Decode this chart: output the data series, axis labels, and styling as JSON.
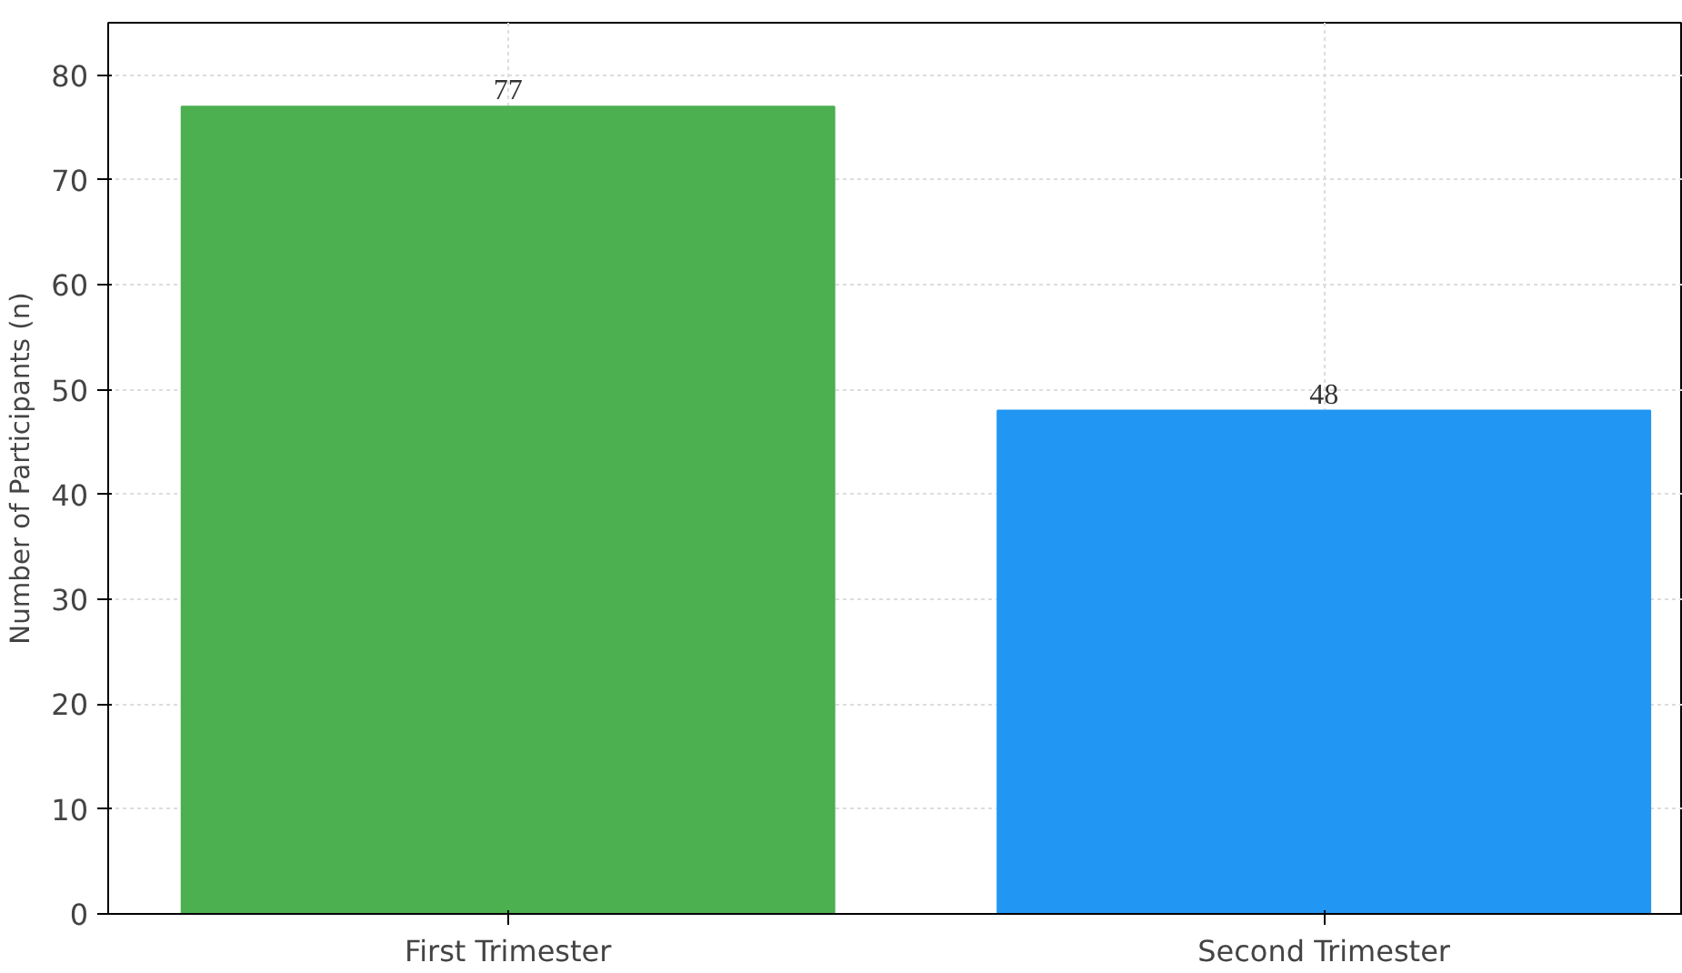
{
  "chart_data": {
    "type": "bar",
    "ylabel": "Number of Participants (n)",
    "categories": [
      "First Trimester",
      "Second Trimester"
    ],
    "values": [
      77,
      48
    ],
    "colors": [
      "#4caf50",
      "#2196f3"
    ],
    "ylim": [
      0,
      85
    ],
    "yticks": [
      0,
      10,
      20,
      30,
      40,
      50,
      60,
      70,
      80
    ],
    "grid": true,
    "data_labels": true
  }
}
